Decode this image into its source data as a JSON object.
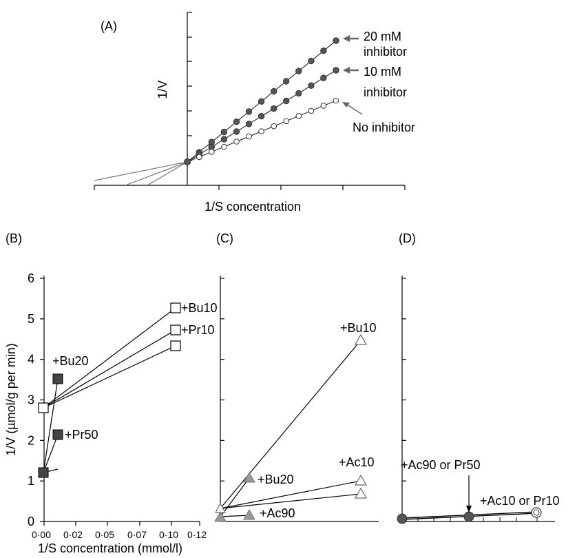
{
  "colors": {
    "filled_dot": "#555555",
    "arrow": "#666666",
    "marker_fill_gray": "#999999",
    "marker_fill_dark": "#444444"
  },
  "chart_data": [
    {
      "panel": "(A)",
      "type": "line",
      "xlabel": "1/S concentration",
      "ylabel": "1/V",
      "series": [
        {
          "name": "20 mM inhibitor",
          "label_lines": [
            "20 mM",
            "inhibitor"
          ],
          "marker": "filled-circle"
        },
        {
          "name": "10 mM inhibitor",
          "label_lines": [
            "10 mM",
            "inhibitor"
          ],
          "marker": "filled-circle"
        },
        {
          "name": "No inhibitor",
          "label_lines": [
            "No inhibitor"
          ],
          "marker": "open-circle"
        }
      ]
    },
    {
      "panel": "(B)",
      "type": "line",
      "xlabel": "1/S concentration (mmol/l)",
      "ylabel": "1/V (µmol/g per min)",
      "xticks": [
        "0·00",
        "0·02",
        "0·05",
        "0·07",
        "0·10",
        "0·12"
      ],
      "yticks": [
        "0",
        "1",
        "2",
        "3",
        "4",
        "5",
        "6"
      ],
      "ylim": [
        0,
        6
      ],
      "annotations": [
        "+Bu10",
        "+Pr10",
        "+Bu20",
        "+Pr50"
      ]
    },
    {
      "panel": "(C)",
      "type": "line",
      "annotations": [
        "+Bu10",
        "+Ac10",
        "+Bu20",
        "+Ac90"
      ]
    },
    {
      "panel": "(D)",
      "type": "line",
      "annotations": [
        "+Ac90 or Pr50",
        "+Ac10 or Pr10"
      ]
    }
  ]
}
